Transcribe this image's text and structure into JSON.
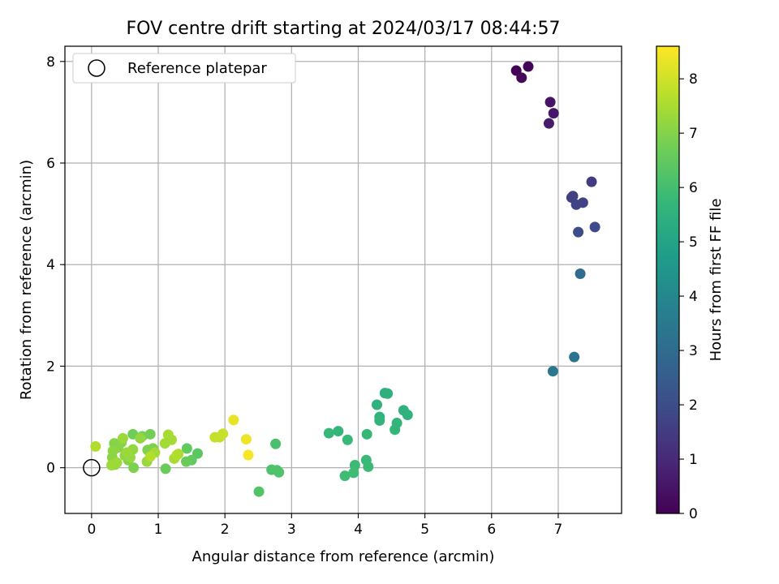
{
  "chart_data": {
    "type": "scatter",
    "title": "FOV centre drift starting at 2024/03/17 08:44:57",
    "xlabel": "Angular distance from reference (arcmin)",
    "ylabel": "Rotation from reference (arcmin)",
    "xlim": [
      -0.4,
      7.95
    ],
    "ylim": [
      -0.9,
      8.3
    ],
    "xticks": [
      0,
      1,
      2,
      3,
      4,
      5,
      6,
      7
    ],
    "yticks": [
      0,
      2,
      4,
      6,
      8
    ],
    "grid": true,
    "legend": {
      "placement": "upper-left",
      "entries": [
        {
          "label": "Reference platepar",
          "marker": "open-circle"
        }
      ]
    },
    "reference_point": {
      "x": 0,
      "y": 0
    },
    "colorbar": {
      "label": "Hours from first FF file",
      "colormap": "viridis",
      "range": [
        0,
        8.6
      ],
      "ticks": [
        0,
        1,
        2,
        3,
        4,
        5,
        6,
        7,
        8
      ]
    },
    "points": [
      {
        "x": 6.37,
        "y": 7.82,
        "c": 0.05
      },
      {
        "x": 6.55,
        "y": 7.9,
        "c": 0.1
      },
      {
        "x": 6.45,
        "y": 7.68,
        "c": 0.2
      },
      {
        "x": 6.88,
        "y": 7.2,
        "c": 0.45
      },
      {
        "x": 6.93,
        "y": 6.98,
        "c": 0.55
      },
      {
        "x": 6.86,
        "y": 6.78,
        "c": 0.65
      },
      {
        "x": 7.5,
        "y": 5.63,
        "c": 1.5
      },
      {
        "x": 7.2,
        "y": 5.32,
        "c": 1.6
      },
      {
        "x": 7.22,
        "y": 5.35,
        "c": 1.65
      },
      {
        "x": 7.37,
        "y": 5.22,
        "c": 1.7
      },
      {
        "x": 7.27,
        "y": 5.18,
        "c": 1.75
      },
      {
        "x": 7.55,
        "y": 4.74,
        "c": 1.9
      },
      {
        "x": 7.3,
        "y": 4.64,
        "c": 2.0
      },
      {
        "x": 7.33,
        "y": 3.82,
        "c": 3.0
      },
      {
        "x": 7.24,
        "y": 2.18,
        "c": 3.3
      },
      {
        "x": 6.92,
        "y": 1.9,
        "c": 3.4
      },
      {
        "x": 4.4,
        "y": 1.47,
        "c": 5.4
      },
      {
        "x": 4.44,
        "y": 1.46,
        "c": 5.45
      },
      {
        "x": 4.28,
        "y": 1.24,
        "c": 5.5
      },
      {
        "x": 4.68,
        "y": 1.13,
        "c": 5.5
      },
      {
        "x": 4.74,
        "y": 1.04,
        "c": 5.55
      },
      {
        "x": 4.32,
        "y": 1.0,
        "c": 5.55
      },
      {
        "x": 4.32,
        "y": 0.93,
        "c": 5.6
      },
      {
        "x": 4.58,
        "y": 0.88,
        "c": 5.6
      },
      {
        "x": 4.55,
        "y": 0.75,
        "c": 5.65
      },
      {
        "x": 3.7,
        "y": 0.72,
        "c": 5.7
      },
      {
        "x": 3.56,
        "y": 0.68,
        "c": 5.75
      },
      {
        "x": 4.13,
        "y": 0.66,
        "c": 5.75
      },
      {
        "x": 3.84,
        "y": 0.55,
        "c": 5.8
      },
      {
        "x": 4.12,
        "y": 0.15,
        "c": 5.8
      },
      {
        "x": 3.95,
        "y": 0.05,
        "c": 5.85
      },
      {
        "x": 4.15,
        "y": 0.02,
        "c": 5.85
      },
      {
        "x": 3.93,
        "y": -0.1,
        "c": 5.9
      },
      {
        "x": 3.8,
        "y": -0.16,
        "c": 5.9
      },
      {
        "x": 2.76,
        "y": 0.47,
        "c": 6.1
      },
      {
        "x": 2.7,
        "y": -0.04,
        "c": 6.15
      },
      {
        "x": 2.78,
        "y": -0.05,
        "c": 6.2
      },
      {
        "x": 2.81,
        "y": -0.09,
        "c": 6.2
      },
      {
        "x": 2.51,
        "y": -0.47,
        "c": 6.25
      },
      {
        "x": 1.59,
        "y": 0.28,
        "c": 6.4
      },
      {
        "x": 1.43,
        "y": 0.38,
        "c": 6.5
      },
      {
        "x": 1.5,
        "y": 0.15,
        "c": 6.5
      },
      {
        "x": 1.42,
        "y": 0.12,
        "c": 6.6
      },
      {
        "x": 1.11,
        "y": -0.02,
        "c": 6.6
      },
      {
        "x": 0.62,
        "y": 0.66,
        "c": 6.7
      },
      {
        "x": 0.88,
        "y": 0.66,
        "c": 6.75
      },
      {
        "x": 0.76,
        "y": 0.62,
        "c": 6.8
      },
      {
        "x": 0.92,
        "y": 0.38,
        "c": 6.85
      },
      {
        "x": 0.84,
        "y": 0.35,
        "c": 6.9
      },
      {
        "x": 0.63,
        "y": 0.0,
        "c": 6.9
      },
      {
        "x": 0.55,
        "y": 0.15,
        "c": 6.95
      },
      {
        "x": 0.45,
        "y": 0.5,
        "c": 7.0
      },
      {
        "x": 0.34,
        "y": 0.48,
        "c": 7.0
      },
      {
        "x": 0.4,
        "y": 0.4,
        "c": 7.05
      },
      {
        "x": 0.31,
        "y": 0.2,
        "c": 7.1
      },
      {
        "x": 0.35,
        "y": 0.06,
        "c": 7.1
      },
      {
        "x": 0.32,
        "y": 0.33,
        "c": 7.15
      },
      {
        "x": 0.5,
        "y": 0.24,
        "c": 7.15
      },
      {
        "x": 0.62,
        "y": 0.36,
        "c": 7.2
      },
      {
        "x": 0.73,
        "y": 0.58,
        "c": 7.2
      },
      {
        "x": 0.58,
        "y": 0.2,
        "c": 7.25
      },
      {
        "x": 0.83,
        "y": 0.12,
        "c": 7.25
      },
      {
        "x": 0.47,
        "y": 0.58,
        "c": 7.3
      },
      {
        "x": 0.53,
        "y": 0.3,
        "c": 7.3
      },
      {
        "x": 0.38,
        "y": 0.1,
        "c": 7.35
      },
      {
        "x": 0.3,
        "y": 0.05,
        "c": 7.35
      },
      {
        "x": 0.95,
        "y": 0.3,
        "c": 7.4
      },
      {
        "x": 1.1,
        "y": 0.48,
        "c": 7.4
      },
      {
        "x": 1.2,
        "y": 0.55,
        "c": 7.45
      },
      {
        "x": 1.15,
        "y": 0.65,
        "c": 7.45
      },
      {
        "x": 1.24,
        "y": 0.18,
        "c": 7.5
      },
      {
        "x": 1.3,
        "y": 0.27,
        "c": 7.55
      },
      {
        "x": 1.28,
        "y": 0.25,
        "c": 7.6
      },
      {
        "x": 0.06,
        "y": 0.42,
        "c": 7.6
      },
      {
        "x": 0.88,
        "y": 0.22,
        "c": 7.65
      },
      {
        "x": 1.92,
        "y": 0.6,
        "c": 7.8
      },
      {
        "x": 1.85,
        "y": 0.6,
        "c": 7.85
      },
      {
        "x": 1.97,
        "y": 0.67,
        "c": 7.9
      },
      {
        "x": 2.13,
        "y": 0.94,
        "c": 8.3
      },
      {
        "x": 2.32,
        "y": 0.56,
        "c": 8.4
      },
      {
        "x": 2.35,
        "y": 0.25,
        "c": 8.5
      }
    ]
  }
}
